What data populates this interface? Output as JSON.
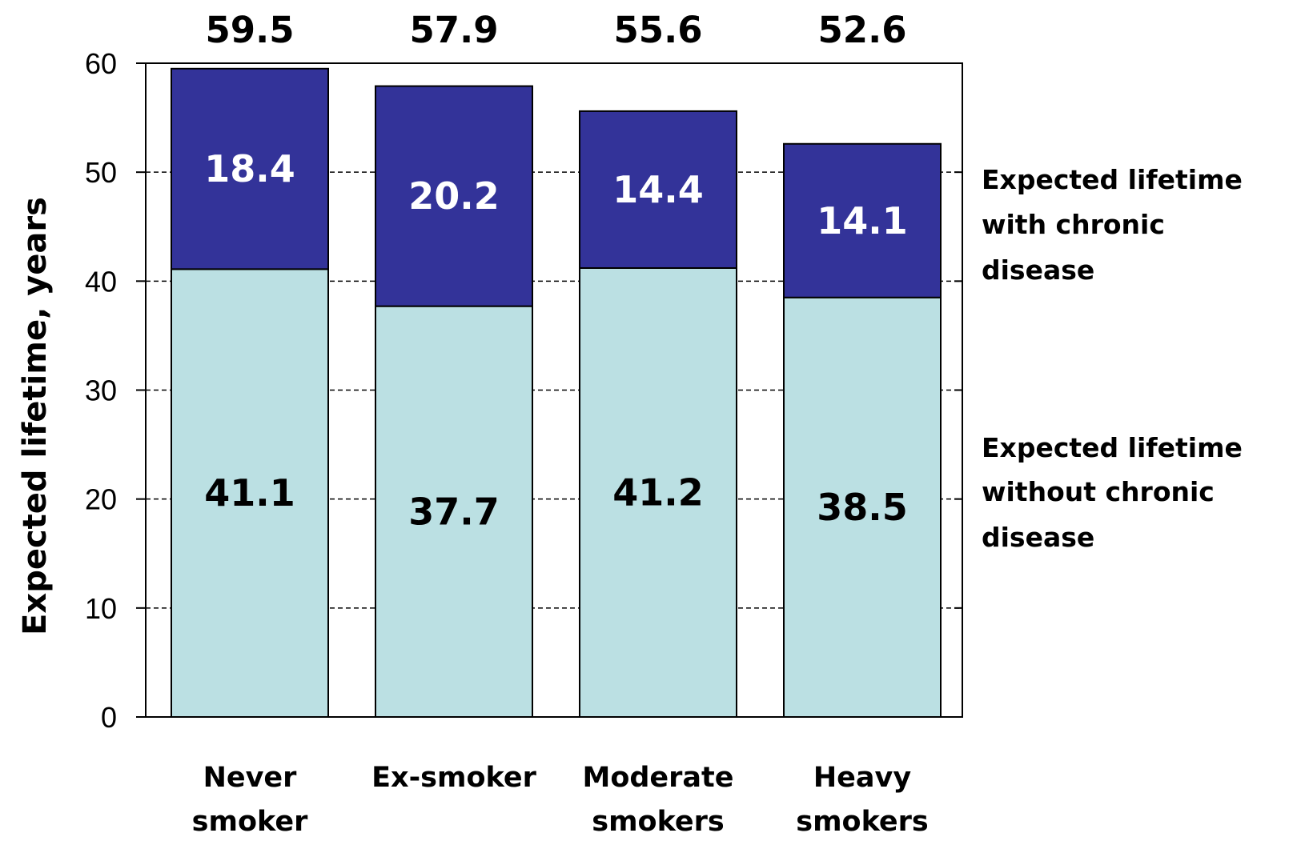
{
  "chart_data": {
    "type": "bar",
    "stacked": true,
    "ylabel": "Expected lifetime, years",
    "ylim": [
      0,
      60
    ],
    "yticks": [
      0,
      10,
      20,
      30,
      40,
      50,
      60
    ],
    "grid": true,
    "categories": [
      [
        "Never",
        "smoker"
      ],
      [
        "Ex-smoker"
      ],
      [
        "Moderate",
        "smokers"
      ],
      [
        "Heavy",
        "smokers"
      ]
    ],
    "totals": [
      "59.5",
      "57.9",
      "55.6",
      "52.6"
    ],
    "series": [
      {
        "name": [
          "Expected lifetime",
          "without chronic",
          "disease"
        ],
        "values": [
          41.1,
          37.7,
          41.2,
          38.5
        ],
        "color": "#bbe0e3"
      },
      {
        "name": [
          "Expected lifetime",
          "with chronic",
          "disease"
        ],
        "values": [
          18.4,
          20.2,
          14.4,
          14.1
        ],
        "color": "#333399"
      }
    ]
  }
}
